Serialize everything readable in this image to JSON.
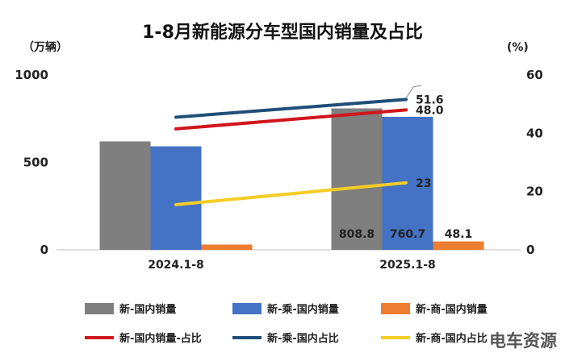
{
  "title": "1-8月新能源分车型国内销量及占比",
  "left_unit": "（万辆）",
  "right_unit": "(%)",
  "watermark": "电车资源",
  "colors": {
    "gray": "#7f7f7f",
    "blue": "#4472c4",
    "orange": "#ed7d31",
    "red": "#d0161c",
    "navy": "#1f4e79",
    "yellow": "#f4cd25"
  },
  "chart_data": {
    "type": "bar",
    "categories": [
      "2024.1-8",
      "2025.1-8"
    ],
    "ylim": [
      0,
      1000
    ],
    "y_ticks": [
      "0",
      "500",
      "1000"
    ],
    "y2lim": [
      0,
      60
    ],
    "y2_ticks": [
      "0",
      "20",
      "40",
      "60"
    ],
    "grid": false,
    "legend_position": "bottom",
    "bar_series": [
      {
        "name": "新-国内销量",
        "color": "#7f7f7f",
        "values": [
          620,
          808.8
        ],
        "labels": [
          "",
          "808.8"
        ]
      },
      {
        "name": "新-乘-国内销量",
        "color": "#4472c4",
        "values": [
          592,
          760.7
        ],
        "labels": [
          "",
          "760.7"
        ]
      },
      {
        "name": "新-商-国内销量",
        "color": "#ed7d31",
        "values": [
          30,
          48.1
        ],
        "labels": [
          "",
          "48.1"
        ]
      }
    ],
    "line_series": [
      {
        "name": "新-国内销量-占比",
        "color": "#d0161c",
        "values": [
          41.5,
          48.0
        ],
        "labels": [
          "",
          "48.0"
        ]
      },
      {
        "name": "新-乘-国内占比",
        "color": "#1f4e79",
        "values": [
          45.5,
          51.6
        ],
        "labels": [
          "",
          "51.6"
        ]
      },
      {
        "name": "新-商-国内占比",
        "color": "#f4cd25",
        "values": [
          15.5,
          23
        ],
        "labels": [
          "",
          "23"
        ]
      }
    ]
  }
}
